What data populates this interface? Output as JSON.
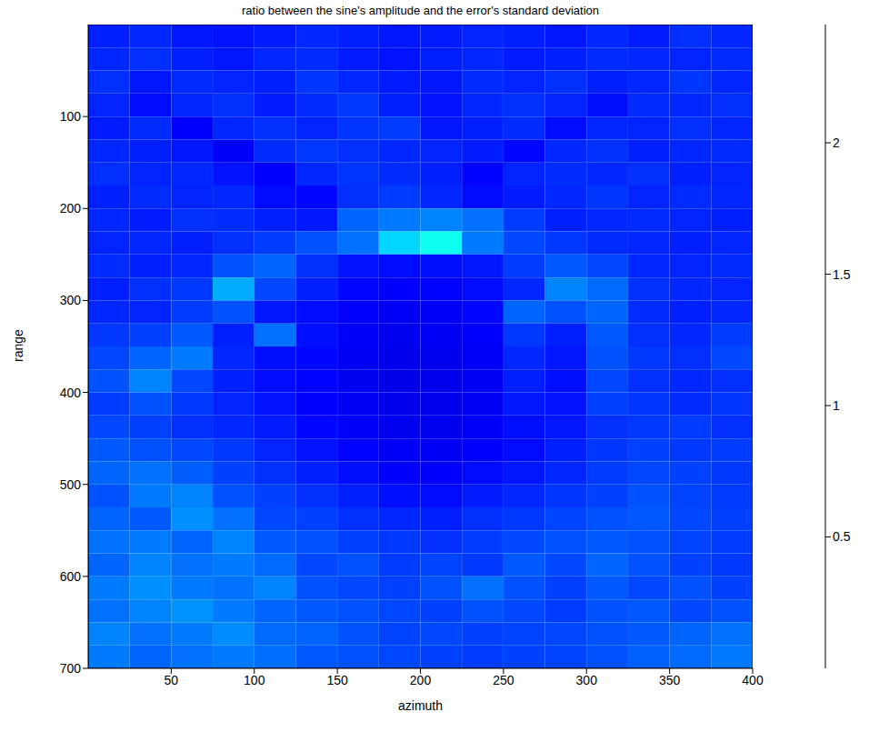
{
  "chart_data": {
    "type": "heatmap",
    "title": "ratio between the sine's amplitude and the error's standard deviation",
    "x_label": "azimuth",
    "y_label": "range",
    "xlim": [
      0,
      400
    ],
    "ylim": [
      0,
      700
    ],
    "xticks": [
      50,
      100,
      150,
      200,
      250,
      300,
      350,
      400
    ],
    "yticks": [
      100,
      200,
      300,
      400,
      500,
      600,
      700
    ],
    "x_edges": [
      0,
      25,
      50,
      75,
      100,
      125,
      150,
      175,
      200,
      225,
      250,
      275,
      300,
      325,
      350,
      375,
      400
    ],
    "y_edges": [
      0,
      25,
      50,
      75,
      100,
      125,
      150,
      175,
      200,
      225,
      250,
      275,
      300,
      325,
      350,
      375,
      400,
      425,
      450,
      475,
      500,
      525,
      550,
      575,
      600,
      625,
      650,
      675,
      700
    ],
    "cells": [
      [
        0.38,
        0.4,
        0.36,
        0.35,
        0.37,
        0.4,
        0.38,
        0.36,
        0.37,
        0.39,
        0.38,
        0.36,
        0.4,
        0.37,
        0.42,
        0.4
      ],
      [
        0.4,
        0.42,
        0.38,
        0.36,
        0.4,
        0.41,
        0.37,
        0.35,
        0.38,
        0.4,
        0.37,
        0.38,
        0.41,
        0.4,
        0.39,
        0.41
      ],
      [
        0.42,
        0.36,
        0.41,
        0.39,
        0.38,
        0.43,
        0.4,
        0.37,
        0.36,
        0.41,
        0.39,
        0.42,
        0.38,
        0.4,
        0.43,
        0.4
      ],
      [
        0.39,
        0.33,
        0.4,
        0.42,
        0.37,
        0.41,
        0.44,
        0.38,
        0.35,
        0.4,
        0.42,
        0.39,
        0.34,
        0.41,
        0.4,
        0.42
      ],
      [
        0.37,
        0.41,
        0.3,
        0.4,
        0.42,
        0.39,
        0.43,
        0.45,
        0.36,
        0.38,
        0.41,
        0.33,
        0.4,
        0.39,
        0.42,
        0.4
      ],
      [
        0.4,
        0.38,
        0.36,
        0.29,
        0.41,
        0.44,
        0.42,
        0.4,
        0.39,
        0.37,
        0.32,
        0.4,
        0.42,
        0.38,
        0.4,
        0.41
      ],
      [
        0.42,
        0.39,
        0.4,
        0.35,
        0.3,
        0.4,
        0.43,
        0.41,
        0.38,
        0.31,
        0.39,
        0.41,
        0.4,
        0.42,
        0.38,
        0.39
      ],
      [
        0.38,
        0.41,
        0.39,
        0.4,
        0.33,
        0.32,
        0.42,
        0.45,
        0.4,
        0.33,
        0.37,
        0.4,
        0.43,
        0.39,
        0.41,
        0.4
      ],
      [
        0.4,
        0.37,
        0.42,
        0.41,
        0.38,
        0.36,
        0.55,
        0.6,
        0.62,
        0.58,
        0.45,
        0.38,
        0.4,
        0.41,
        0.39,
        0.38
      ],
      [
        0.39,
        0.4,
        0.38,
        0.42,
        0.45,
        0.5,
        0.58,
        0.82,
        0.95,
        0.6,
        0.48,
        0.44,
        0.41,
        0.4,
        0.38,
        0.4
      ],
      [
        0.41,
        0.38,
        0.4,
        0.5,
        0.55,
        0.42,
        0.35,
        0.33,
        0.34,
        0.36,
        0.45,
        0.52,
        0.48,
        0.4,
        0.39,
        0.41
      ],
      [
        0.38,
        0.42,
        0.44,
        0.72,
        0.48,
        0.38,
        0.32,
        0.3,
        0.31,
        0.33,
        0.4,
        0.62,
        0.56,
        0.42,
        0.4,
        0.39
      ],
      [
        0.4,
        0.39,
        0.45,
        0.5,
        0.36,
        0.33,
        0.3,
        0.28,
        0.29,
        0.32,
        0.55,
        0.5,
        0.55,
        0.41,
        0.38,
        0.4
      ],
      [
        0.44,
        0.46,
        0.52,
        0.38,
        0.58,
        0.34,
        0.29,
        0.27,
        0.28,
        0.3,
        0.44,
        0.38,
        0.52,
        0.42,
        0.4,
        0.45
      ],
      [
        0.48,
        0.55,
        0.6,
        0.4,
        0.34,
        0.32,
        0.28,
        0.26,
        0.27,
        0.29,
        0.4,
        0.36,
        0.5,
        0.44,
        0.42,
        0.48
      ],
      [
        0.5,
        0.62,
        0.48,
        0.38,
        0.33,
        0.31,
        0.27,
        0.25,
        0.26,
        0.28,
        0.38,
        0.34,
        0.48,
        0.42,
        0.4,
        0.42
      ],
      [
        0.45,
        0.5,
        0.44,
        0.39,
        0.35,
        0.3,
        0.28,
        0.26,
        0.26,
        0.28,
        0.36,
        0.35,
        0.46,
        0.43,
        0.41,
        0.43
      ],
      [
        0.48,
        0.46,
        0.42,
        0.4,
        0.37,
        0.32,
        0.29,
        0.27,
        0.27,
        0.29,
        0.34,
        0.36,
        0.42,
        0.44,
        0.45,
        0.42
      ],
      [
        0.52,
        0.5,
        0.48,
        0.44,
        0.39,
        0.35,
        0.31,
        0.28,
        0.28,
        0.3,
        0.33,
        0.38,
        0.43,
        0.46,
        0.44,
        0.45
      ],
      [
        0.55,
        0.58,
        0.53,
        0.46,
        0.42,
        0.38,
        0.34,
        0.3,
        0.3,
        0.33,
        0.36,
        0.4,
        0.45,
        0.48,
        0.46,
        0.44
      ],
      [
        0.5,
        0.6,
        0.62,
        0.5,
        0.46,
        0.42,
        0.38,
        0.34,
        0.33,
        0.37,
        0.4,
        0.43,
        0.46,
        0.5,
        0.47,
        0.45
      ],
      [
        0.55,
        0.52,
        0.65,
        0.58,
        0.48,
        0.46,
        0.42,
        0.4,
        0.38,
        0.42,
        0.44,
        0.47,
        0.5,
        0.52,
        0.48,
        0.46
      ],
      [
        0.58,
        0.6,
        0.55,
        0.62,
        0.52,
        0.5,
        0.46,
        0.44,
        0.42,
        0.45,
        0.48,
        0.5,
        0.52,
        0.5,
        0.47,
        0.45
      ],
      [
        0.55,
        0.62,
        0.58,
        0.6,
        0.56,
        0.48,
        0.5,
        0.45,
        0.47,
        0.44,
        0.52,
        0.48,
        0.55,
        0.5,
        0.46,
        0.44
      ],
      [
        0.6,
        0.65,
        0.6,
        0.58,
        0.62,
        0.5,
        0.48,
        0.46,
        0.5,
        0.58,
        0.5,
        0.46,
        0.52,
        0.48,
        0.5,
        0.46
      ],
      [
        0.58,
        0.62,
        0.66,
        0.6,
        0.55,
        0.52,
        0.5,
        0.48,
        0.46,
        0.5,
        0.48,
        0.45,
        0.5,
        0.52,
        0.48,
        0.5
      ],
      [
        0.62,
        0.58,
        0.6,
        0.64,
        0.56,
        0.55,
        0.5,
        0.47,
        0.48,
        0.46,
        0.47,
        0.48,
        0.5,
        0.52,
        0.55,
        0.58
      ],
      [
        0.6,
        0.55,
        0.58,
        0.6,
        0.57,
        0.52,
        0.5,
        0.48,
        0.46,
        0.45,
        0.46,
        0.47,
        0.5,
        0.54,
        0.56,
        0.6
      ]
    ],
    "color_range": [
      0,
      2.45
    ],
    "color_ticks": [
      0.5,
      1,
      1.5,
      2
    ]
  }
}
